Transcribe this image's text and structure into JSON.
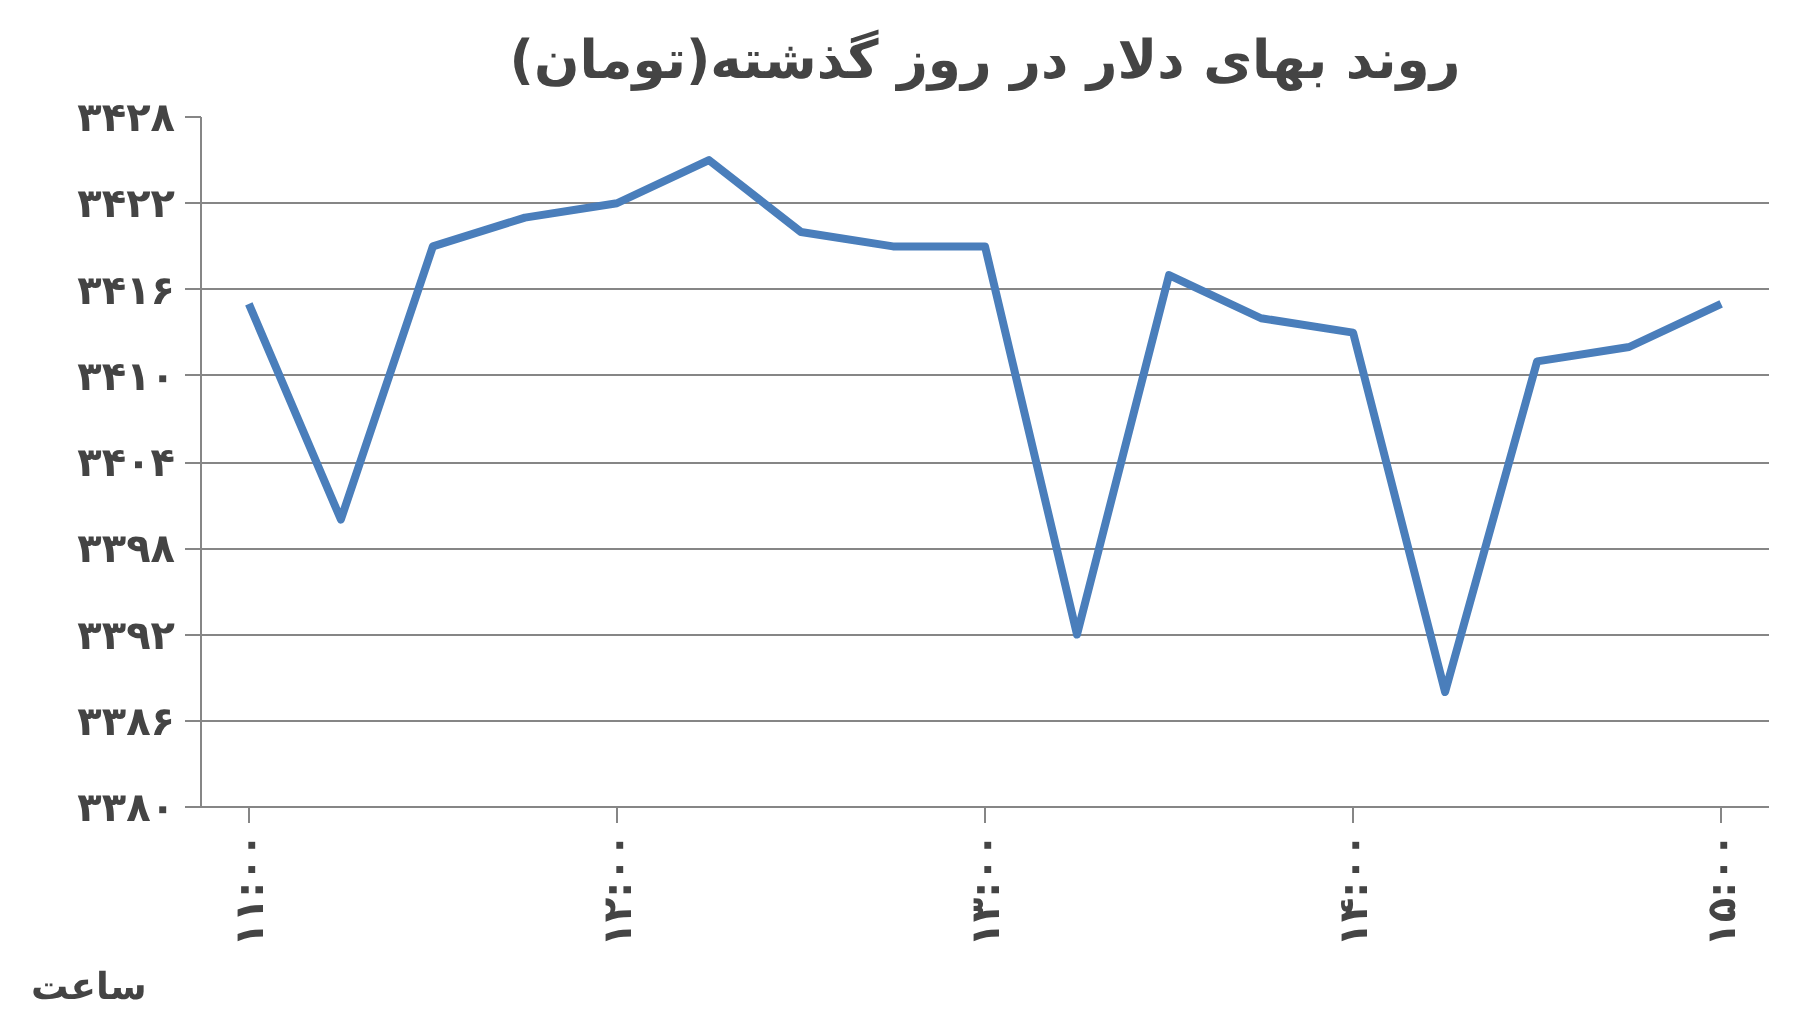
{
  "chart_data": {
    "type": "line",
    "title": "روند بهای دلار در روز گذشته(تومان)",
    "xlabel": "ساعت",
    "x": [
      11,
      11.25,
      11.5,
      11.75,
      12,
      12.25,
      12.5,
      12.75,
      13,
      13.25,
      13.5,
      13.75,
      14,
      14.25,
      14.5,
      14.75,
      15
    ],
    "series": [
      {
        "color": "#4a7ebb",
        "values": [
          3415,
          3400,
          3419,
          3421,
          3422,
          3425,
          3420,
          3419,
          3419,
          3392,
          3417,
          3414,
          3413,
          3388,
          3411,
          3412,
          3415
        ]
      }
    ],
    "xlim": [
      10.87,
      15.13
    ],
    "xticks": [
      {
        "value": 11,
        "label": "۱۱:۰۰"
      },
      {
        "value": 12,
        "label": "۱۲:۰۰"
      },
      {
        "value": 13,
        "label": "۱۳:۰۰"
      },
      {
        "value": 14,
        "label": "۱۴:۰۰"
      },
      {
        "value": 15,
        "label": "۱۵:۰۰"
      }
    ],
    "ylim": [
      3380,
      3428
    ],
    "yticks": [
      {
        "value": 3380,
        "label": "۳۳۸۰"
      },
      {
        "value": 3386,
        "label": "۳۳۸۶"
      },
      {
        "value": 3392,
        "label": "۳۳۹۲"
      },
      {
        "value": 3398,
        "label": "۳۳۹۸"
      },
      {
        "value": 3404,
        "label": "۳۴۰۴"
      },
      {
        "value": 3410,
        "label": "۳۴۱۰"
      },
      {
        "value": 3416,
        "label": "۳۴۱۶"
      },
      {
        "value": 3422,
        "label": "۳۴۲۲"
      },
      {
        "value": 3428,
        "label": "۳۴۲۸"
      }
    ],
    "grid": "y",
    "marker": "none",
    "line_style": "solid"
  }
}
